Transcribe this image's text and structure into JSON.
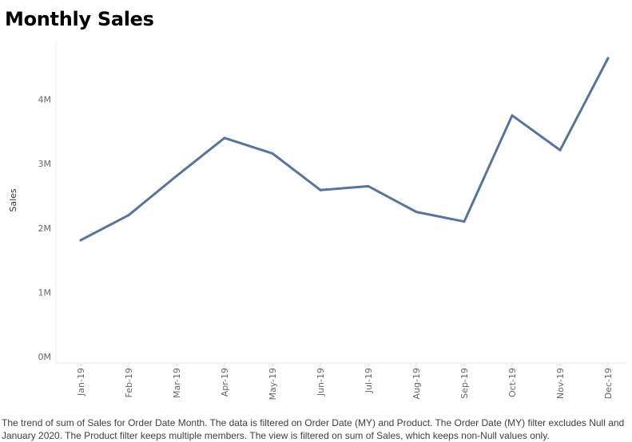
{
  "chart_data": {
    "type": "line",
    "title": "Monthly Sales",
    "xlabel": "",
    "ylabel": "Sales",
    "categories": [
      "Jan-19",
      "Feb-19",
      "Mar-19",
      "Apr-19",
      "May-19",
      "Jun-19",
      "Jul-19",
      "Aug-19",
      "Sep-19",
      "Oct-19",
      "Nov-19",
      "Dec-19"
    ],
    "series": [
      {
        "values": [
          1810000,
          2200000,
          2810000,
          3400000,
          3160000,
          2590000,
          2650000,
          2250000,
          2100000,
          3750000,
          3210000,
          4640000
        ]
      }
    ],
    "ylim": [
      0,
      4900000
    ],
    "yticks": [
      0,
      1000000,
      2000000,
      3000000,
      4000000
    ],
    "ytick_labels": [
      "0M",
      "1M",
      "2M",
      "3M",
      "4M"
    ],
    "grid": false,
    "legend": "none",
    "colors": {
      "line": "#58749a",
      "axis_text": "#666666"
    }
  },
  "caption": "The trend of sum of Sales for Order Date Month. The data is filtered on Order Date (MY) and Product. The Order Date (MY) filter excludes Null and January 2020. The Product filter keeps multiple members. The view is filtered on sum of Sales, which keeps non-Null values only."
}
